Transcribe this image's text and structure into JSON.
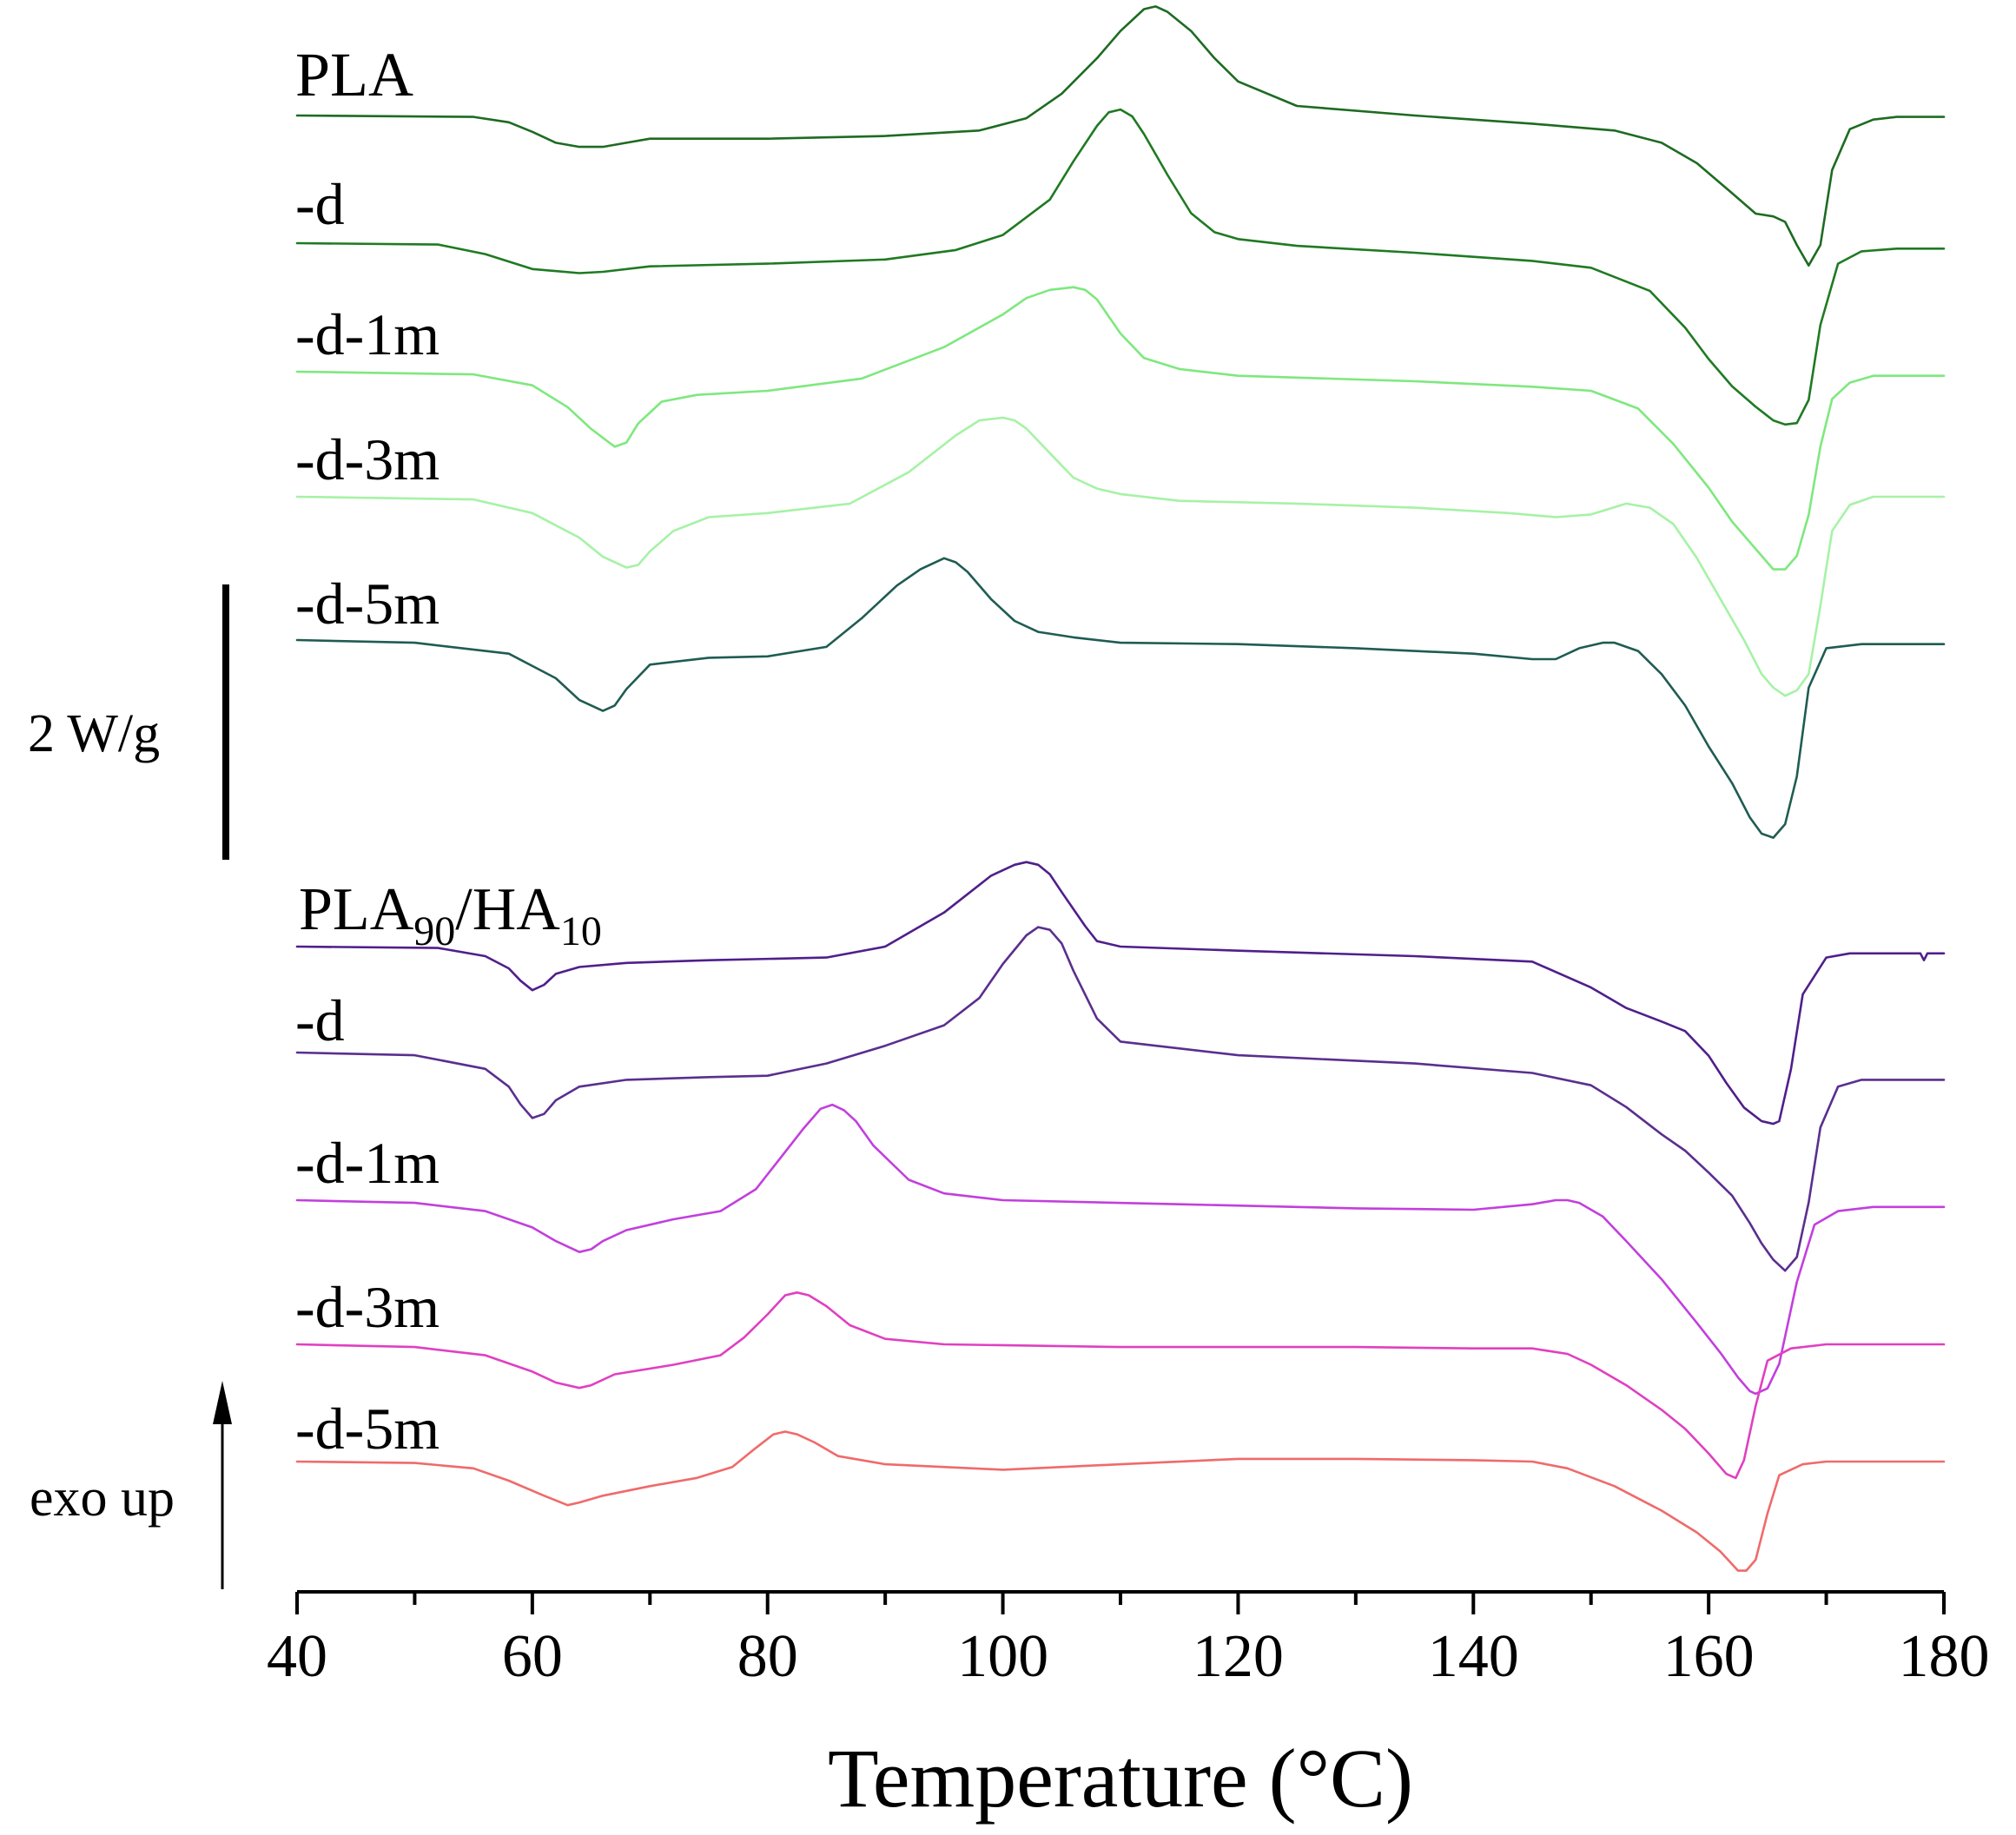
{
  "chart_data": {
    "type": "line",
    "title": "",
    "xlabel": "Temperature (°C)",
    "ylabel": "",
    "xlim": [
      40,
      180
    ],
    "x_ticks": [
      40,
      60,
      80,
      100,
      120,
      140,
      160,
      180
    ],
    "scale_bar_label": "2 W/g",
    "direction_label": "exo up",
    "series": [
      {
        "name": "PLA",
        "label": "PLA",
        "group": "PLA",
        "color": "#1e6b22",
        "x": [
          40,
          55,
          58,
          60,
          62,
          64,
          66,
          68,
          70,
          80,
          90,
          98,
          102,
          105,
          108,
          110,
          112,
          113,
          114,
          116,
          118,
          120,
          125,
          135,
          145,
          152,
          156,
          159,
          162,
          164,
          165.5,
          166.5,
          167.5,
          168.5,
          169.5,
          170.5,
          172,
          174,
          176,
          180
        ],
        "y": [
          0,
          -0.01,
          -0.05,
          -0.12,
          -0.2,
          -0.23,
          -0.23,
          -0.2,
          -0.17,
          -0.17,
          -0.15,
          -0.11,
          -0.02,
          0.16,
          0.42,
          0.62,
          0.78,
          0.8,
          0.76,
          0.62,
          0.42,
          0.25,
          0.07,
          0.0,
          -0.06,
          -0.11,
          -0.2,
          -0.35,
          -0.57,
          -0.72,
          -0.74,
          -0.78,
          -0.95,
          -1.1,
          -0.95,
          -0.4,
          -0.1,
          -0.03,
          -0.01,
          -0.01
        ]
      },
      {
        "name": "PLA -d",
        "label": "-d",
        "group": "PLA",
        "color": "#1f7a22",
        "x": [
          40,
          52,
          56,
          60,
          64,
          66,
          70,
          80,
          90,
          96,
          100,
          104,
          106,
          108,
          109,
          110,
          111,
          112,
          114,
          116,
          118,
          120,
          125,
          135,
          145,
          150,
          155,
          158,
          160,
          162,
          164,
          165.5,
          166.5,
          167.5,
          168.5,
          169.5,
          171,
          173,
          176,
          180
        ],
        "y": [
          0,
          -0.01,
          -0.08,
          -0.19,
          -0.22,
          -0.21,
          -0.17,
          -0.15,
          -0.12,
          -0.05,
          0.06,
          0.32,
          0.6,
          0.86,
          0.96,
          0.98,
          0.93,
          0.8,
          0.5,
          0.22,
          0.08,
          0.03,
          -0.02,
          -0.07,
          -0.13,
          -0.18,
          -0.35,
          -0.62,
          -0.85,
          -1.05,
          -1.2,
          -1.3,
          -1.33,
          -1.32,
          -1.15,
          -0.6,
          -0.15,
          -0.06,
          -0.04,
          -0.04
        ]
      },
      {
        "name": "PLA -d-1m",
        "label": "-d-1m",
        "group": "PLA",
        "color": "#7ee87e",
        "x": [
          40,
          55,
          60,
          63,
          65,
          67,
          68,
          69,
          71,
          74,
          80,
          88,
          95,
          100,
          102,
          104,
          106,
          107,
          108,
          110,
          112,
          115,
          120,
          135,
          145,
          150,
          154,
          157,
          160,
          162,
          164,
          165.5,
          166.5,
          167.5,
          168.5,
          169.5,
          170.5,
          172,
          174,
          177,
          180
        ],
        "y": [
          0,
          -0.02,
          -0.1,
          -0.26,
          -0.42,
          -0.55,
          -0.52,
          -0.38,
          -0.22,
          -0.17,
          -0.14,
          -0.05,
          0.18,
          0.42,
          0.54,
          0.6,
          0.62,
          0.6,
          0.53,
          0.28,
          0.1,
          0.02,
          -0.03,
          -0.07,
          -0.11,
          -0.14,
          -0.27,
          -0.53,
          -0.85,
          -1.1,
          -1.3,
          -1.45,
          -1.45,
          -1.35,
          -1.05,
          -0.55,
          -0.2,
          -0.08,
          -0.03,
          -0.03,
          -0.03
        ]
      },
      {
        "name": "PLA -d-3m",
        "label": "-d-3m",
        "group": "PLA",
        "color": "#a6f2a6",
        "x": [
          40,
          55,
          60,
          64,
          66,
          68,
          69,
          70,
          72,
          75,
          80,
          87,
          92,
          96,
          98,
          100,
          101,
          102,
          104,
          106,
          108,
          110,
          115,
          125,
          135,
          143,
          147,
          150,
          153,
          155,
          157,
          159,
          161,
          163,
          164.5,
          165.5,
          166.5,
          167.5,
          168.5,
          169.5,
          170.5,
          172,
          174,
          177,
          180
        ],
        "y": [
          0,
          -0.02,
          -0.12,
          -0.3,
          -0.44,
          -0.52,
          -0.5,
          -0.4,
          -0.25,
          -0.15,
          -0.12,
          -0.05,
          0.18,
          0.45,
          0.56,
          0.58,
          0.56,
          0.5,
          0.32,
          0.14,
          0.06,
          0.02,
          -0.03,
          -0.05,
          -0.08,
          -0.12,
          -0.15,
          -0.13,
          -0.05,
          -0.08,
          -0.2,
          -0.45,
          -0.75,
          -1.05,
          -1.3,
          -1.4,
          -1.46,
          -1.42,
          -1.3,
          -0.8,
          -0.25,
          -0.06,
          0.0,
          0.0,
          0.0
        ]
      },
      {
        "name": "PLA -d-5m",
        "label": "-d-5m",
        "group": "PLA",
        "color": "#1f5c52",
        "x": [
          40,
          50,
          58,
          62,
          64,
          66,
          67,
          68,
          70,
          75,
          80,
          85,
          88,
          91,
          93,
          95,
          96,
          97,
          99,
          101,
          103,
          106,
          110,
          120,
          130,
          140,
          145,
          147,
          149,
          151,
          152,
          154,
          156,
          158,
          160,
          162,
          163.5,
          164.5,
          165.5,
          166.5,
          167.5,
          168.5,
          170,
          173,
          176,
          180
        ],
        "y": [
          0,
          -0.02,
          -0.1,
          -0.28,
          -0.44,
          -0.52,
          -0.48,
          -0.36,
          -0.18,
          -0.13,
          -0.12,
          -0.05,
          0.16,
          0.4,
          0.52,
          0.6,
          0.57,
          0.5,
          0.3,
          0.14,
          0.06,
          0.02,
          -0.02,
          -0.03,
          -0.06,
          -0.1,
          -0.14,
          -0.14,
          -0.06,
          -0.02,
          -0.02,
          -0.08,
          -0.25,
          -0.48,
          -0.78,
          -1.05,
          -1.3,
          -1.42,
          -1.45,
          -1.35,
          -1.0,
          -0.35,
          -0.06,
          -0.03,
          -0.03,
          -0.03
        ]
      },
      {
        "name": "PLA90/HA10",
        "label": "PLA90/HA10",
        "group": "PLA90/HA10",
        "color": "#4f1f8a",
        "x": [
          40,
          52,
          56,
          58,
          59,
          60,
          61,
          62,
          64,
          68,
          75,
          85,
          90,
          95,
          99,
          101,
          102,
          103,
          104,
          105,
          107,
          108,
          110,
          120,
          135,
          145,
          150,
          153,
          156,
          158,
          160,
          161.5,
          163,
          164.5,
          165.5,
          166,
          167,
          168,
          170,
          172,
          175,
          178,
          178.3,
          178.6,
          180
        ],
        "y": [
          0,
          -0.01,
          -0.07,
          -0.16,
          -0.25,
          -0.32,
          -0.28,
          -0.2,
          -0.15,
          -0.12,
          -0.1,
          -0.08,
          0.0,
          0.25,
          0.52,
          0.6,
          0.62,
          0.6,
          0.53,
          0.4,
          0.15,
          0.04,
          0.0,
          -0.03,
          -0.07,
          -0.11,
          -0.3,
          -0.45,
          -0.55,
          -0.62,
          -0.8,
          -1.0,
          -1.18,
          -1.28,
          -1.3,
          -1.28,
          -0.9,
          -0.35,
          -0.08,
          -0.05,
          -0.05,
          -0.05,
          -0.1,
          -0.05,
          -0.05
        ]
      },
      {
        "name": "PLA90/HA10 -d",
        "label": "-d",
        "group": "PLA90/HA10",
        "color": "#5a2f8e",
        "x": [
          40,
          50,
          56,
          58,
          59,
          60,
          61,
          62,
          64,
          68,
          75,
          80,
          85,
          90,
          95,
          98,
          100,
          102,
          103,
          104,
          105,
          106,
          108,
          110,
          120,
          135,
          145,
          150,
          153,
          156,
          158,
          160,
          162,
          163.5,
          164.5,
          165.5,
          166.5,
          167.5,
          168.5,
          169.5,
          171,
          173,
          176,
          180
        ],
        "y": [
          0,
          -0.02,
          -0.12,
          -0.25,
          -0.38,
          -0.48,
          -0.45,
          -0.35,
          -0.25,
          -0.2,
          -0.18,
          -0.17,
          -0.08,
          0.05,
          0.2,
          0.4,
          0.65,
          0.86,
          0.92,
          0.9,
          0.8,
          0.6,
          0.25,
          0.08,
          -0.02,
          -0.08,
          -0.15,
          -0.24,
          -0.4,
          -0.6,
          -0.72,
          -0.88,
          -1.05,
          -1.25,
          -1.4,
          -1.52,
          -1.6,
          -1.5,
          -1.1,
          -0.55,
          -0.25,
          -0.2,
          -0.2,
          -0.2
        ]
      },
      {
        "name": "PLA90/HA10 -d-1m",
        "label": "-d-1m",
        "group": "PLA90/HA10",
        "color": "#c23fdd",
        "x": [
          40,
          50,
          56,
          60,
          62,
          64,
          65,
          66,
          68,
          72,
          76,
          79,
          81,
          83,
          84.5,
          85.5,
          86.5,
          87.5,
          89,
          92,
          95,
          100,
          115,
          130,
          140,
          145,
          147,
          148,
          149,
          151,
          153,
          156,
          159,
          161,
          162.5,
          163.5,
          164,
          165,
          166,
          167.5,
          169,
          171,
          174,
          177,
          180
        ],
        "y": [
          0,
          -0.02,
          -0.08,
          -0.2,
          -0.3,
          -0.38,
          -0.36,
          -0.3,
          -0.22,
          -0.14,
          -0.08,
          0.08,
          0.3,
          0.52,
          0.67,
          0.7,
          0.66,
          0.58,
          0.4,
          0.15,
          0.05,
          0.0,
          -0.03,
          -0.06,
          -0.07,
          -0.03,
          0.0,
          0.0,
          -0.02,
          -0.12,
          -0.3,
          -0.58,
          -0.9,
          -1.12,
          -1.3,
          -1.4,
          -1.42,
          -1.38,
          -1.2,
          -0.6,
          -0.18,
          -0.08,
          -0.05,
          -0.05,
          -0.05
        ]
      },
      {
        "name": "PLA90/HA10 -d-3m",
        "label": "-d-3m",
        "group": "PLA90/HA10",
        "color": "#e040c0",
        "x": [
          40,
          50,
          56,
          60,
          62,
          64,
          65,
          67,
          72,
          76,
          78,
          80,
          81.5,
          82.5,
          83.5,
          85,
          87,
          90,
          95,
          110,
          130,
          140,
          145,
          148,
          150,
          153,
          156,
          158,
          160,
          161.5,
          162.3,
          163,
          164,
          165,
          167,
          170,
          175,
          180
        ],
        "y": [
          0,
          -0.02,
          -0.08,
          -0.2,
          -0.28,
          -0.32,
          -0.3,
          -0.22,
          -0.15,
          -0.08,
          0.05,
          0.22,
          0.36,
          0.38,
          0.36,
          0.28,
          0.14,
          0.04,
          0.0,
          -0.02,
          -0.02,
          -0.03,
          -0.03,
          -0.07,
          -0.15,
          -0.3,
          -0.48,
          -0.62,
          -0.8,
          -0.95,
          -0.98,
          -0.85,
          -0.45,
          -0.12,
          -0.03,
          0.0,
          0.0,
          0.0
        ]
      },
      {
        "name": "PLA90/HA10 -d-5m",
        "label": "-d-5m",
        "group": "PLA90/HA10",
        "color": "#f06a6a",
        "x": [
          40,
          50,
          55,
          58,
          61,
          63,
          64,
          66,
          70,
          74,
          77,
          79,
          80.5,
          81.5,
          82.5,
          84,
          86,
          90,
          100,
          110,
          120,
          130,
          140,
          145,
          148,
          152,
          156,
          159,
          161,
          162.5,
          163.2,
          164,
          165,
          166,
          168,
          170,
          175,
          180
        ],
        "y": [
          0,
          -0.01,
          -0.05,
          -0.14,
          -0.25,
          -0.32,
          -0.3,
          -0.25,
          -0.18,
          -0.12,
          -0.04,
          0.1,
          0.2,
          0.22,
          0.2,
          0.14,
          0.04,
          -0.02,
          -0.06,
          -0.02,
          0.02,
          0.02,
          0.01,
          0.0,
          -0.05,
          -0.18,
          -0.36,
          -0.52,
          -0.66,
          -0.8,
          -0.8,
          -0.72,
          -0.38,
          -0.1,
          -0.02,
          0.0,
          0.0,
          0.0
        ]
      }
    ]
  }
}
